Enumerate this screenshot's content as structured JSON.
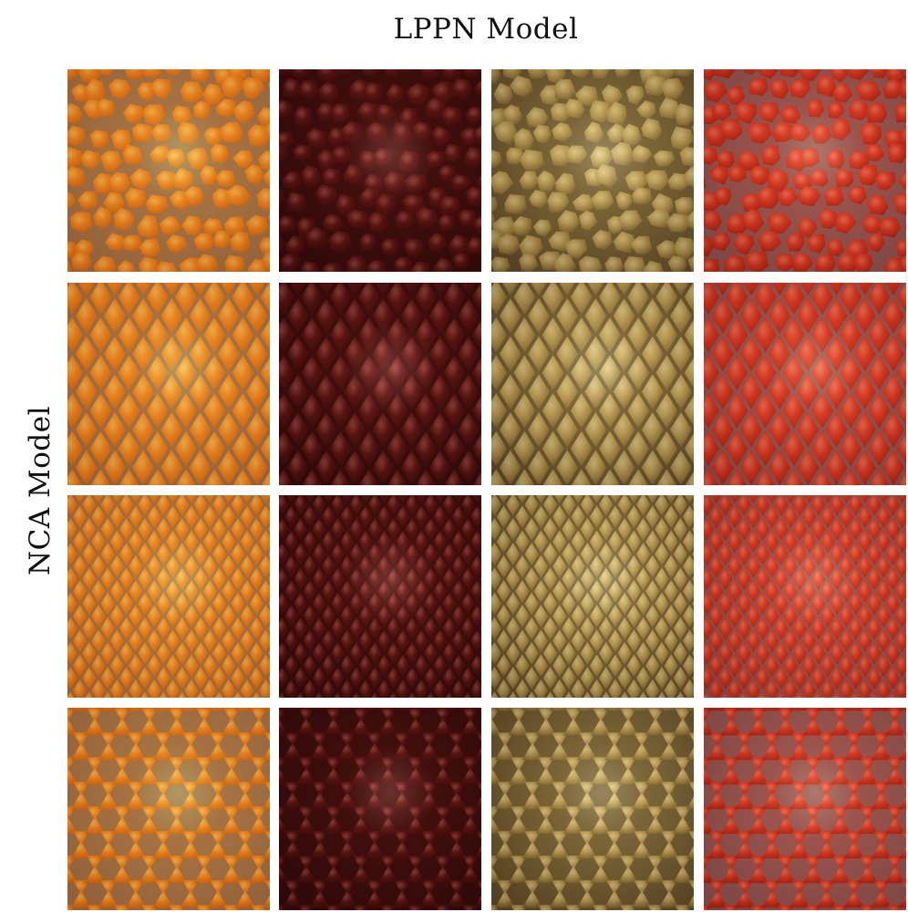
{
  "header": {
    "column_title": "LPPN Model"
  },
  "side": {
    "row_title": "NCA Model"
  },
  "materials": [
    {
      "base": "#e8831f",
      "dark": "#b8560c",
      "hi": "#ffd46a",
      "line": "#6f6760"
    },
    {
      "base": "#5a1512",
      "dark": "#300807",
      "hi": "#b9615a",
      "line": "#2a0a08"
    },
    {
      "base": "#b89a52",
      "dark": "#5e4620",
      "hi": "#f5e3a6",
      "line": "#4a3a22"
    },
    {
      "base": "#d63a22",
      "dark": "#8e1a0e",
      "hi": "#ff8a6a",
      "line": "#6a6a70"
    }
  ],
  "patterns": [
    "voronoi",
    "diamond-large",
    "diamond-small",
    "triangle-hex"
  ]
}
